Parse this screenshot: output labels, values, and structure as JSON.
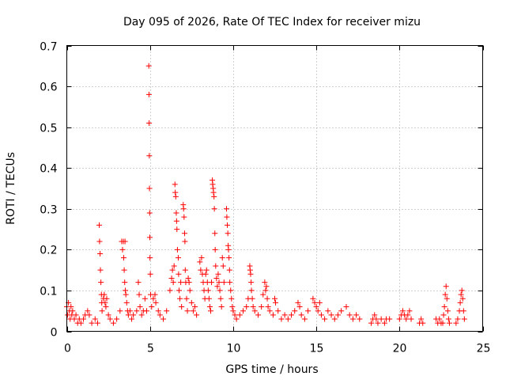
{
  "chart_data": {
    "type": "scatter",
    "title": "Day 095 of 2026, Rate Of TEC Index for receiver mizu",
    "xlabel": "GPS time / hours",
    "ylabel": "ROTI / TECUs",
    "xlim": [
      0,
      25
    ],
    "ylim": [
      0,
      0.7
    ],
    "xticks": [
      0,
      5,
      10,
      15,
      20,
      25
    ],
    "xtick_labels": [
      "0",
      "5",
      "10",
      "15",
      "20",
      "25"
    ],
    "yticks": [
      0,
      0.1,
      0.2,
      0.3,
      0.4,
      0.5,
      0.6,
      0.7
    ],
    "ytick_labels": [
      "0",
      "0.1",
      "0.2",
      "0.3",
      "0.4",
      "0.5",
      "0.6",
      "0.7"
    ],
    "grid": true,
    "marker": "+",
    "color": "#ff0000",
    "series": [
      {
        "name": "ROTI",
        "points": [
          [
            0.0,
            0.06
          ],
          [
            0.05,
            0.04
          ],
          [
            0.1,
            0.07
          ],
          [
            0.15,
            0.05
          ],
          [
            0.2,
            0.03
          ],
          [
            0.25,
            0.06
          ],
          [
            0.3,
            0.04
          ],
          [
            0.35,
            0.05
          ],
          [
            0.45,
            0.03
          ],
          [
            0.55,
            0.04
          ],
          [
            0.65,
            0.02
          ],
          [
            0.75,
            0.03
          ],
          [
            0.85,
            0.02
          ],
          [
            1.0,
            0.03
          ],
          [
            1.1,
            0.04
          ],
          [
            1.25,
            0.05
          ],
          [
            1.35,
            0.04
          ],
          [
            1.5,
            0.02
          ],
          [
            1.7,
            0.03
          ],
          [
            1.85,
            0.02
          ],
          [
            1.95,
            0.26
          ],
          [
            1.97,
            0.22
          ],
          [
            2.0,
            0.19
          ],
          [
            2.02,
            0.15
          ],
          [
            2.05,
            0.12
          ],
          [
            2.08,
            0.09
          ],
          [
            2.1,
            0.07
          ],
          [
            2.12,
            0.05
          ],
          [
            2.2,
            0.08
          ],
          [
            2.25,
            0.09
          ],
          [
            2.3,
            0.07
          ],
          [
            2.35,
            0.06
          ],
          [
            2.4,
            0.08
          ],
          [
            2.5,
            0.04
          ],
          [
            2.6,
            0.03
          ],
          [
            2.8,
            0.02
          ],
          [
            3.0,
            0.03
          ],
          [
            3.2,
            0.05
          ],
          [
            3.3,
            0.22
          ],
          [
            3.35,
            0.2
          ],
          [
            3.4,
            0.22
          ],
          [
            3.42,
            0.18
          ],
          [
            3.45,
            0.15
          ],
          [
            3.48,
            0.12
          ],
          [
            3.5,
            0.22
          ],
          [
            3.52,
            0.1
          ],
          [
            3.55,
            0.09
          ],
          [
            3.6,
            0.07
          ],
          [
            3.65,
            0.05
          ],
          [
            3.7,
            0.04
          ],
          [
            3.8,
            0.05
          ],
          [
            3.9,
            0.03
          ],
          [
            4.0,
            0.04
          ],
          [
            4.2,
            0.05
          ],
          [
            4.3,
            0.12
          ],
          [
            4.35,
            0.09
          ],
          [
            4.4,
            0.06
          ],
          [
            4.5,
            0.04
          ],
          [
            4.6,
            0.05
          ],
          [
            4.7,
            0.08
          ],
          [
            4.8,
            0.05
          ],
          [
            4.93,
            0.65
          ],
          [
            4.94,
            0.58
          ],
          [
            4.95,
            0.51
          ],
          [
            4.96,
            0.43
          ],
          [
            4.97,
            0.35
          ],
          [
            4.98,
            0.29
          ],
          [
            4.99,
            0.23
          ],
          [
            5.0,
            0.18
          ],
          [
            5.02,
            0.14
          ],
          [
            5.04,
            0.09
          ],
          [
            5.1,
            0.06
          ],
          [
            5.2,
            0.08
          ],
          [
            5.3,
            0.09
          ],
          [
            5.35,
            0.07
          ],
          [
            5.5,
            0.05
          ],
          [
            5.6,
            0.04
          ],
          [
            5.8,
            0.03
          ],
          [
            6.0,
            0.05
          ],
          [
            6.2,
            0.1
          ],
          [
            6.3,
            0.13
          ],
          [
            6.35,
            0.15
          ],
          [
            6.4,
            0.12
          ],
          [
            6.45,
            0.16
          ],
          [
            6.5,
            0.36
          ],
          [
            6.52,
            0.34
          ],
          [
            6.55,
            0.33
          ],
          [
            6.58,
            0.29
          ],
          [
            6.6,
            0.27
          ],
          [
            6.62,
            0.25
          ],
          [
            6.65,
            0.2
          ],
          [
            6.7,
            0.18
          ],
          [
            6.72,
            0.14
          ],
          [
            6.75,
            0.1
          ],
          [
            6.8,
            0.08
          ],
          [
            6.85,
            0.12
          ],
          [
            6.9,
            0.06
          ],
          [
            7.0,
            0.31
          ],
          [
            7.02,
            0.3
          ],
          [
            7.05,
            0.28
          ],
          [
            7.08,
            0.24
          ],
          [
            7.1,
            0.22
          ],
          [
            7.12,
            0.15
          ],
          [
            7.15,
            0.12
          ],
          [
            7.2,
            0.08
          ],
          [
            7.25,
            0.05
          ],
          [
            7.3,
            0.13
          ],
          [
            7.35,
            0.12
          ],
          [
            7.4,
            0.1
          ],
          [
            7.5,
            0.07
          ],
          [
            7.6,
            0.05
          ],
          [
            7.7,
            0.06
          ],
          [
            7.8,
            0.04
          ],
          [
            8.0,
            0.17
          ],
          [
            8.05,
            0.15
          ],
          [
            8.1,
            0.18
          ],
          [
            8.15,
            0.14
          ],
          [
            8.2,
            0.12
          ],
          [
            8.25,
            0.1
          ],
          [
            8.3,
            0.08
          ],
          [
            8.35,
            0.14
          ],
          [
            8.4,
            0.15
          ],
          [
            8.45,
            0.12
          ],
          [
            8.5,
            0.1
          ],
          [
            8.55,
            0.08
          ],
          [
            8.6,
            0.06
          ],
          [
            8.65,
            0.05
          ],
          [
            8.7,
            0.12
          ],
          [
            8.75,
            0.37
          ],
          [
            8.77,
            0.36
          ],
          [
            8.8,
            0.35
          ],
          [
            8.82,
            0.34
          ],
          [
            8.85,
            0.33
          ],
          [
            8.87,
            0.3
          ],
          [
            8.9,
            0.24
          ],
          [
            8.92,
            0.2
          ],
          [
            8.95,
            0.16
          ],
          [
            9.0,
            0.13
          ],
          [
            9.05,
            0.11
          ],
          [
            9.1,
            0.14
          ],
          [
            9.15,
            0.12
          ],
          [
            9.2,
            0.1
          ],
          [
            9.25,
            0.08
          ],
          [
            9.3,
            0.06
          ],
          [
            9.35,
            0.18
          ],
          [
            9.4,
            0.16
          ],
          [
            9.45,
            0.12
          ],
          [
            9.6,
            0.3
          ],
          [
            9.62,
            0.28
          ],
          [
            9.65,
            0.26
          ],
          [
            9.68,
            0.24
          ],
          [
            9.7,
            0.21
          ],
          [
            9.72,
            0.2
          ],
          [
            9.75,
            0.18
          ],
          [
            9.78,
            0.15
          ],
          [
            9.8,
            0.12
          ],
          [
            9.85,
            0.1
          ],
          [
            9.9,
            0.08
          ],
          [
            9.95,
            0.06
          ],
          [
            10.0,
            0.05
          ],
          [
            10.1,
            0.04
          ],
          [
            10.2,
            0.03
          ],
          [
            10.4,
            0.04
          ],
          [
            10.6,
            0.05
          ],
          [
            10.8,
            0.06
          ],
          [
            10.9,
            0.08
          ],
          [
            11.0,
            0.16
          ],
          [
            11.02,
            0.15
          ],
          [
            11.05,
            0.14
          ],
          [
            11.08,
            0.12
          ],
          [
            11.1,
            0.1
          ],
          [
            11.15,
            0.08
          ],
          [
            11.2,
            0.06
          ],
          [
            11.3,
            0.05
          ],
          [
            11.5,
            0.04
          ],
          [
            11.7,
            0.06
          ],
          [
            11.8,
            0.09
          ],
          [
            11.9,
            0.12
          ],
          [
            11.95,
            0.1
          ],
          [
            12.0,
            0.11
          ],
          [
            12.05,
            0.08
          ],
          [
            12.1,
            0.06
          ],
          [
            12.2,
            0.05
          ],
          [
            12.4,
            0.04
          ],
          [
            12.5,
            0.08
          ],
          [
            12.55,
            0.07
          ],
          [
            12.7,
            0.05
          ],
          [
            12.9,
            0.03
          ],
          [
            13.1,
            0.04
          ],
          [
            13.3,
            0.03
          ],
          [
            13.5,
            0.04
          ],
          [
            13.7,
            0.05
          ],
          [
            13.9,
            0.07
          ],
          [
            14.0,
            0.06
          ],
          [
            14.1,
            0.04
          ],
          [
            14.3,
            0.03
          ],
          [
            14.5,
            0.05
          ],
          [
            14.8,
            0.08
          ],
          [
            14.9,
            0.07
          ],
          [
            15.0,
            0.06
          ],
          [
            15.1,
            0.05
          ],
          [
            15.2,
            0.07
          ],
          [
            15.3,
            0.04
          ],
          [
            15.5,
            0.03
          ],
          [
            15.7,
            0.05
          ],
          [
            15.9,
            0.04
          ],
          [
            16.1,
            0.03
          ],
          [
            16.3,
            0.04
          ],
          [
            16.5,
            0.05
          ],
          [
            16.8,
            0.06
          ],
          [
            17.0,
            0.04
          ],
          [
            17.2,
            0.03
          ],
          [
            17.4,
            0.04
          ],
          [
            17.6,
            0.03
          ],
          [
            18.3,
            0.02
          ],
          [
            18.4,
            0.03
          ],
          [
            18.5,
            0.04
          ],
          [
            18.6,
            0.03
          ],
          [
            18.7,
            0.02
          ],
          [
            18.9,
            0.03
          ],
          [
            19.1,
            0.02
          ],
          [
            19.2,
            0.03
          ],
          [
            19.4,
            0.03
          ],
          [
            20.0,
            0.03
          ],
          [
            20.1,
            0.04
          ],
          [
            20.2,
            0.05
          ],
          [
            20.3,
            0.04
          ],
          [
            20.4,
            0.03
          ],
          [
            20.5,
            0.04
          ],
          [
            20.6,
            0.05
          ],
          [
            20.7,
            0.03
          ],
          [
            21.2,
            0.02
          ],
          [
            21.3,
            0.03
          ],
          [
            21.4,
            0.02
          ],
          [
            22.2,
            0.03
          ],
          [
            22.3,
            0.02
          ],
          [
            22.4,
            0.03
          ],
          [
            22.5,
            0.02
          ],
          [
            22.6,
            0.02
          ],
          [
            22.65,
            0.04
          ],
          [
            22.7,
            0.06
          ],
          [
            22.75,
            0.09
          ],
          [
            22.8,
            0.11
          ],
          [
            22.85,
            0.08
          ],
          [
            22.9,
            0.05
          ],
          [
            22.95,
            0.03
          ],
          [
            23.0,
            0.02
          ],
          [
            23.4,
            0.02
          ],
          [
            23.5,
            0.03
          ],
          [
            23.6,
            0.05
          ],
          [
            23.65,
            0.07
          ],
          [
            23.7,
            0.09
          ],
          [
            23.75,
            0.1
          ],
          [
            23.8,
            0.08
          ],
          [
            23.85,
            0.05
          ],
          [
            23.9,
            0.03
          ]
        ]
      }
    ]
  }
}
